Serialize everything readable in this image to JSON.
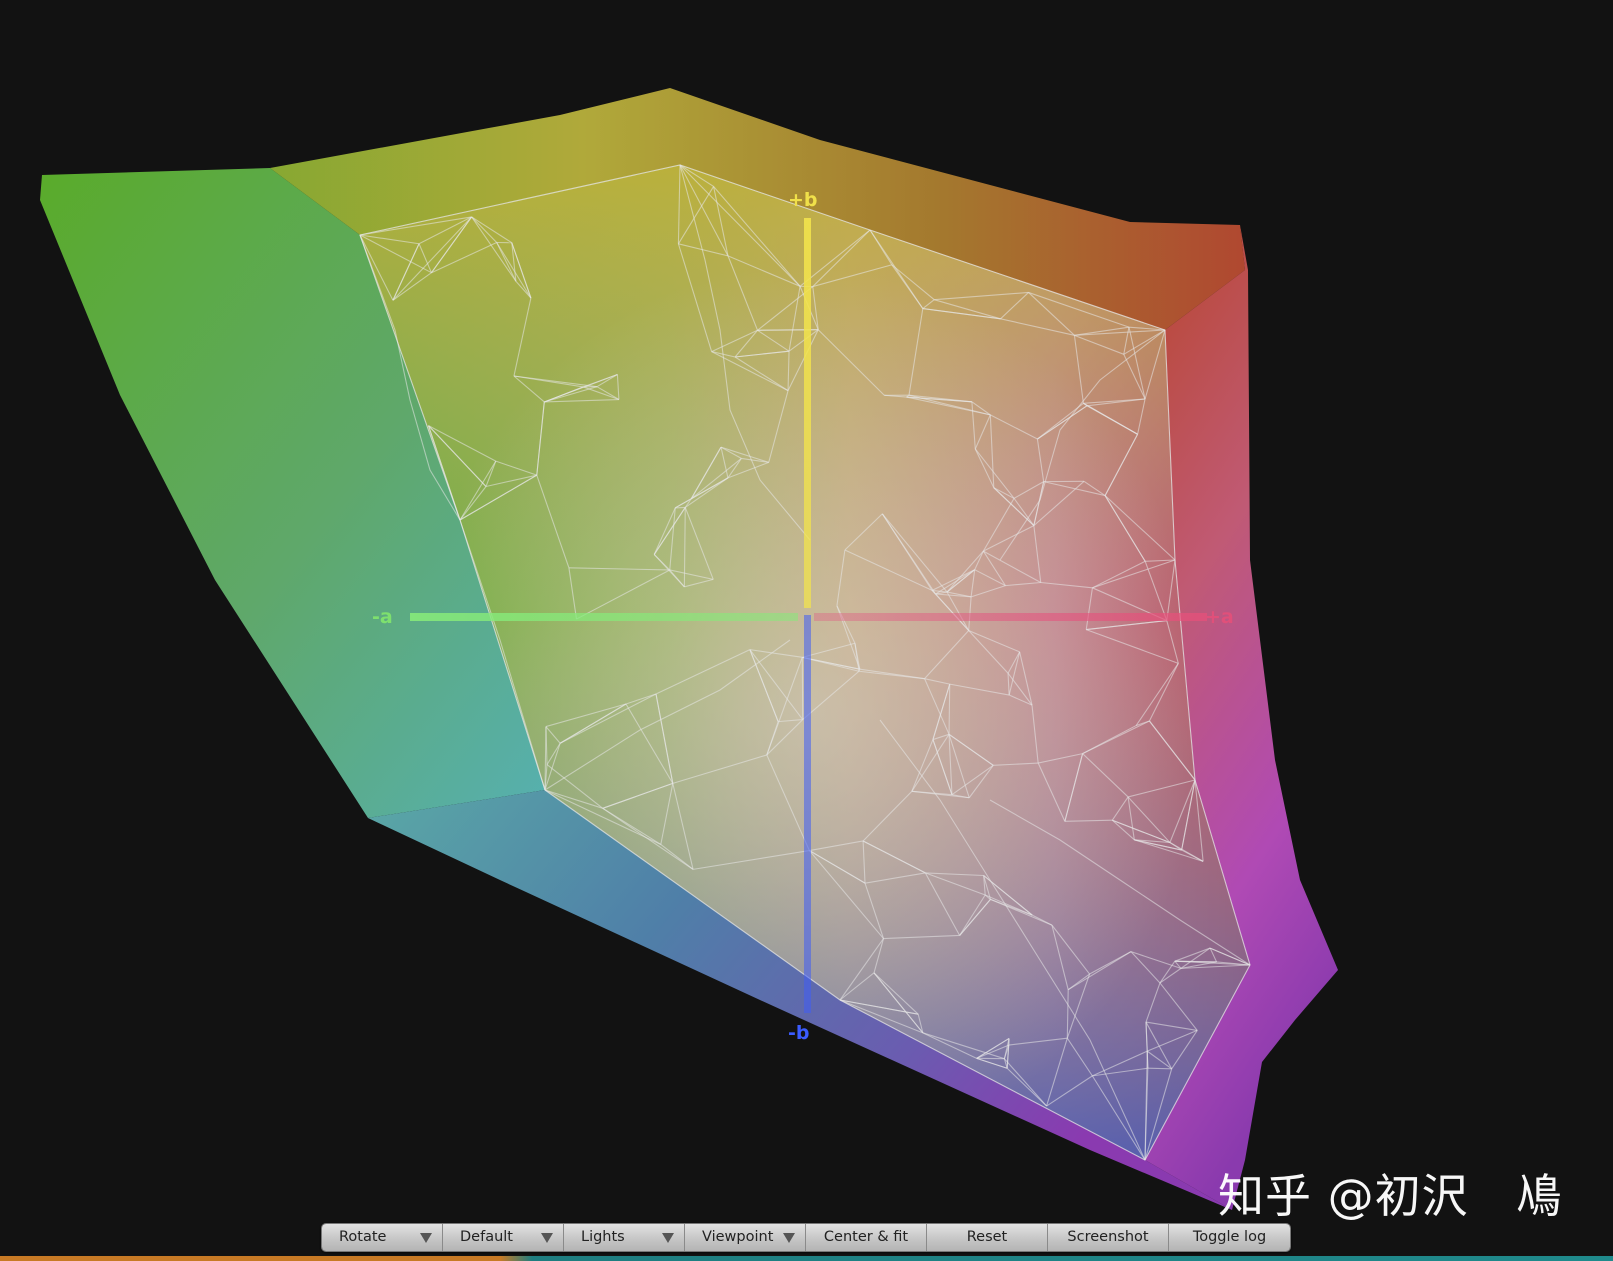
{
  "viewer": {
    "axes": {
      "plus_b": "+b",
      "minus_b": "-b",
      "minus_a": "-a",
      "plus_a": "+a"
    },
    "colors": {
      "background": "#121212",
      "axis_plus_b": "#f0e04a",
      "axis_minus_b": "#3b5cff",
      "axis_minus_a": "#7ee06e",
      "axis_plus_a": "#e0507a",
      "wireframe": "#e6e6e6"
    },
    "watermark": "知乎 @初沢   鳰"
  },
  "toolbar": {
    "rotate": "Rotate",
    "default": "Default",
    "lights": "Lights",
    "viewpoint": "Viewpoint",
    "center_fit": "Center & fit",
    "reset": "Reset",
    "screenshot": "Screenshot",
    "toggle_log": "Toggle log"
  }
}
